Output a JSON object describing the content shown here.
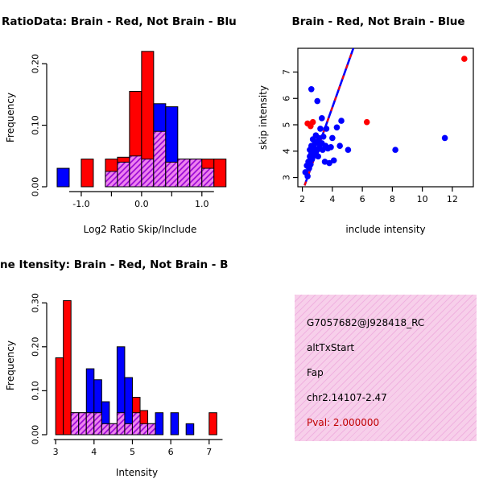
{
  "chart_data": [
    {
      "type": "bar",
      "subtype": "overlaid-histogram",
      "title": "RatioData: Brain - Red, Not Brain - Blu",
      "xlabel": "Log2 Ratio Skip/Include",
      "ylabel": "Frequency",
      "xlim": [
        -1.52,
        1.47
      ],
      "ylim": [
        0,
        0.225
      ],
      "bin_start": -1.4,
      "bin_width": 0.2,
      "xticks": [
        -1.0,
        -0.5,
        0.0,
        0.5,
        1.0
      ],
      "xtick_labels": [
        "-1.0",
        "",
        "0.0",
        "",
        "1.0"
      ],
      "yticks": [
        0.0,
        0.1,
        0.2
      ],
      "ytick_labels": [
        "0.00",
        "0.10",
        "0.20"
      ],
      "axis_line_x": [
        -1.2,
        1.2
      ],
      "legend_note": "Brain - Red, Not Brain - Blue",
      "series": [
        {
          "name": "Brain",
          "color": "#FF0000",
          "values": [
            0,
            0,
            0.045,
            0,
            0.045,
            0.048,
            0.155,
            0.22,
            0.09,
            0.04,
            0.045,
            0.045,
            0.045,
            0.045
          ]
        },
        {
          "name": "Not Brain",
          "color": "#0000FF",
          "values": [
            0.03,
            0,
            0,
            0,
            0.025,
            0.04,
            0.05,
            0.045,
            0.135,
            0.13,
            0.045,
            0.045,
            0.03,
            0
          ]
        }
      ],
      "overlap": {
        "base": "#EE82EE",
        "line": "#9400D3"
      }
    },
    {
      "type": "scatter",
      "title": "Brain - Red, Not Brain - Blue",
      "xlabel": "include intensity",
      "ylabel": "skip intensity",
      "xlim": [
        1.7,
        13.4
      ],
      "ylim": [
        2.65,
        7.9
      ],
      "xticks": [
        2,
        4,
        6,
        8,
        10,
        12
      ],
      "xtick_labels": [
        "2",
        "4",
        "6",
        "8",
        "10",
        "12"
      ],
      "yticks": [
        3,
        4,
        5,
        6,
        7
      ],
      "ytick_labels": [
        "3",
        "4",
        "5",
        "6",
        "7"
      ],
      "series": [
        {
          "name": "Brain",
          "color": "#FF0000",
          "points": [
            [
              2.35,
              5.05
            ],
            [
              2.55,
              4.95
            ],
            [
              2.7,
              5.1
            ],
            [
              6.3,
              5.1
            ],
            [
              12.8,
              7.5
            ]
          ]
        },
        {
          "name": "Not Brain",
          "color": "#0000FF",
          "points": [
            [
              2.2,
              3.2
            ],
            [
              2.3,
              3.45
            ],
            [
              2.35,
              3.05
            ],
            [
              2.4,
              3.6
            ],
            [
              2.45,
              3.35
            ],
            [
              2.5,
              3.8
            ],
            [
              2.5,
              4.05
            ],
            [
              2.55,
              3.5
            ],
            [
              2.6,
              3.9
            ],
            [
              2.6,
              4.2
            ],
            [
              2.65,
              3.7
            ],
            [
              2.7,
              4.0
            ],
            [
              2.7,
              4.45
            ],
            [
              2.75,
              3.85
            ],
            [
              2.8,
              4.1
            ],
            [
              2.85,
              4.3
            ],
            [
              2.9,
              3.95
            ],
            [
              2.9,
              4.6
            ],
            [
              3.0,
              4.05
            ],
            [
              3.0,
              4.35
            ],
            [
              3.05,
              3.8
            ],
            [
              3.1,
              4.5
            ],
            [
              3.15,
              4.15
            ],
            [
              3.2,
              4.85
            ],
            [
              3.3,
              4.3
            ],
            [
              3.35,
              4.05
            ],
            [
              3.4,
              4.55
            ],
            [
              3.5,
              3.6
            ],
            [
              3.55,
              4.2
            ],
            [
              3.6,
              4.85
            ],
            [
              3.7,
              4.1
            ],
            [
              3.8,
              3.55
            ],
            [
              3.9,
              4.15
            ],
            [
              4.0,
              4.5
            ],
            [
              4.1,
              3.65
            ],
            [
              4.3,
              4.9
            ],
            [
              4.5,
              4.2
            ],
            [
              4.6,
              5.15
            ],
            [
              5.05,
              4.05
            ],
            [
              2.6,
              6.35
            ],
            [
              3.0,
              5.9
            ],
            [
              3.3,
              5.25
            ],
            [
              8.2,
              4.05
            ],
            [
              11.5,
              4.5
            ]
          ]
        }
      ],
      "fit_line": {
        "x": [
          2.15,
          5.4
        ],
        "y": [
          2.7,
          7.9
        ],
        "solid_color": "#0000FF",
        "dash_color": "#FF0000"
      }
    },
    {
      "type": "bar",
      "subtype": "overlaid-histogram",
      "title": "ne Itensity: Brain - Red, Not Brain - B",
      "xlabel": "Intensity",
      "ylabel": "Frequency",
      "xlim": [
        2.85,
        7.55
      ],
      "ylim": [
        0,
        0.315
      ],
      "bin_start": 3.0,
      "bin_width": 0.2,
      "xticks": [
        3,
        4,
        5,
        6,
        7
      ],
      "xtick_labels": [
        "3",
        "4",
        "5",
        "6",
        "7"
      ],
      "yticks": [
        0.0,
        0.1,
        0.2,
        0.3
      ],
      "ytick_labels": [
        "0.00",
        "0.10",
        "0.20",
        "0.30"
      ],
      "axis_line_x": [
        2.95,
        7.35
      ],
      "legend_note": "Brain - Red, Not Brain - Blue",
      "series": [
        {
          "name": "Brain",
          "color": "#FF0000",
          "values": [
            0.175,
            0.305,
            0.05,
            0.05,
            0.05,
            0.05,
            0.025,
            0.025,
            0.05,
            0.025,
            0.085,
            0.055,
            0.025,
            0,
            0,
            0,
            0,
            0,
            0,
            0,
            0.05,
            0
          ]
        },
        {
          "name": "Not Brain",
          "color": "#0000FF",
          "values": [
            0,
            0,
            0.05,
            0.05,
            0.15,
            0.125,
            0.075,
            0.025,
            0.2,
            0.13,
            0.05,
            0.025,
            0.025,
            0.05,
            0,
            0.05,
            0,
            0.025,
            0,
            0,
            0,
            0
          ]
        }
      ],
      "overlap": {
        "base": "#EE82EE",
        "line": "#9400D3"
      }
    }
  ],
  "info_box": {
    "bg": "#F7CFEA",
    "lines": [
      "G7057682@J928418_RC",
      "altTxStart",
      "Fap",
      "chr2.14107-2.47"
    ],
    "pval": "Pval: 2.000000",
    "pval_color": "#C00000"
  }
}
